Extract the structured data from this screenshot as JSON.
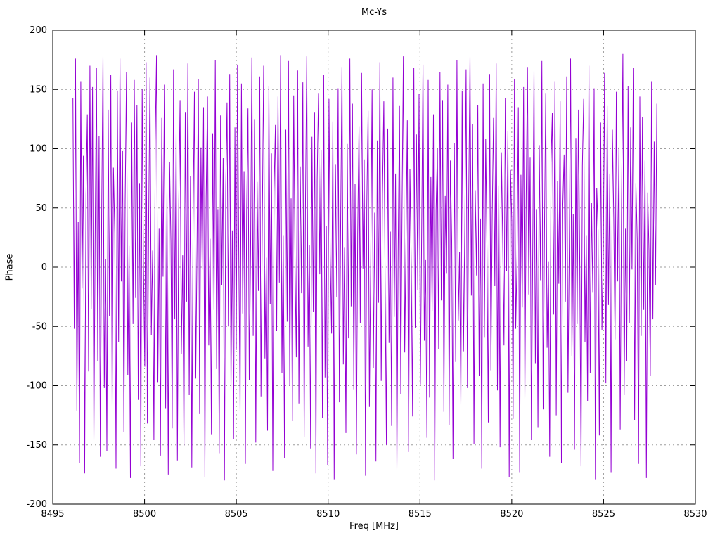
{
  "chart_data": {
    "type": "line",
    "title": "Mc-Ys",
    "xlabel": "Freq [MHz]",
    "ylabel": "Phase",
    "xlim": [
      8495,
      8530
    ],
    "ylim": [
      -200,
      200
    ],
    "x_ticks": [
      8495,
      8500,
      8505,
      8510,
      8515,
      8520,
      8525,
      8530
    ],
    "y_ticks": [
      -200,
      -150,
      -100,
      -50,
      0,
      50,
      100,
      150,
      200
    ],
    "grid": true,
    "legend": "none",
    "line_color": "#9400d3",
    "series_name": "Phase",
    "x_start": 8496.1,
    "x_end": 8527.9,
    "y_values": [
      143,
      -52,
      176,
      -121,
      38,
      -165,
      157,
      -18,
      94,
      -174,
      61,
      129,
      -88,
      170,
      -35,
      152,
      -147,
      23,
      168,
      -79,
      111,
      -160,
      45,
      178,
      -102,
      7,
      -155,
      133,
      -41,
      162,
      -117,
      84,
      29,
      -170,
      149,
      -63,
      176,
      -12,
      98,
      -139,
      55,
      165,
      -91,
      18,
      -178,
      122,
      -48,
      158,
      -26,
      137,
      -112,
      71,
      -168,
      150,
      4,
      -84,
      173,
      -132,
      42,
      160,
      -57,
      14,
      -146,
      107,
      179,
      -97,
      33,
      -159,
      126,
      -8,
      154,
      -119,
      66,
      -175,
      89,
      21,
      -136,
      167,
      -44,
      115,
      -163,
      52,
      141,
      -73,
      10,
      -151,
      131,
      -29,
      172,
      -108,
      77,
      -169,
      37,
      148,
      -94,
      16,
      159,
      -124,
      101,
      -2,
      135,
      -177,
      59,
      144,
      -66,
      24,
      -141,
      113,
      -36,
      175,
      -86,
      49,
      -157,
      128,
      -15,
      92,
      -180,
      68,
      139,
      -50,
      163,
      -105,
      31,
      -145,
      118,
      -70,
      171,
      5,
      -122,
      155,
      -39,
      81,
      -166,
      47,
      134,
      -95,
      12,
      177,
      -58,
      125,
      -148,
      72,
      -20,
      161,
      -109,
      40,
      170,
      -77,
      8,
      -138,
      153,
      -31,
      96,
      -172,
      64,
      120,
      -54,
      144,
      -13,
      179,
      -89,
      27,
      -161,
      116,
      -46,
      174,
      -100,
      58,
      -130,
      145,
      3,
      -76,
      166,
      -115,
      85,
      -22,
      156,
      -143,
      50,
      178,
      -67,
      19,
      -153,
      110,
      -38,
      131,
      -174,
      74,
      147,
      -6,
      99,
      -127,
      162,
      -93,
      35,
      -167,
      142,
      11,
      -56,
      123,
      -179,
      87,
      -25,
      151,
      -114,
      43,
      169,
      -82,
      17,
      -140,
      104,
      -60,
      176,
      -33,
      138,
      -103,
      70,
      -158,
      28,
      119,
      -47,
      164,
      -1,
      91,
      -176,
      53,
      132,
      -118,
      9,
      150,
      -85,
      46,
      -164,
      107,
      -30,
      173,
      -96,
      62,
      140,
      -10,
      -150,
      117,
      -64,
      30,
      -134,
      160,
      -42,
      79,
      -171,
      14,
      136,
      -107,
      55,
      178,
      -72,
      25,
      124,
      -156,
      83,
      2,
      -126,
      168,
      -51,
      112,
      -19,
      146,
      -99,
      36,
      171,
      -62,
      6,
      -144,
      158,
      -110,
      76,
      -37,
      129,
      -180,
      48,
      100,
      -69,
      165,
      -28,
      141,
      -122,
      60,
      -5,
      154,
      -133,
      90,
      22,
      -162,
      105,
      -80,
      175,
      -45,
      13,
      -116,
      149,
      -71,
      34,
      167,
      -102,
      57,
      178,
      -24,
      121,
      -149,
      65,
      -7,
      137,
      -92,
      41,
      -170,
      155,
      -59,
      108,
      15,
      -131,
      163,
      -87,
      44,
      126,
      -16,
      172,
      -104,
      69,
      -152,
      97,
      26,
      -66,
      143,
      -3,
      115,
      -177,
      82,
      39,
      -128,
      159,
      -52,
      9,
      135,
      -173,
      78,
      -34,
      152,
      -111,
      61,
      169,
      -23,
      93,
      -146,
      18,
      166,
      -81,
      49,
      -135,
      103,
      -11,
      174,
      -120,
      32,
      147,
      -68,
      5,
      -160,
      88,
      130,
      -40,
      157,
      -125,
      73,
      -14,
      140,
      -165,
      51,
      95,
      -29,
      161,
      -106,
      20,
      176,
      -75,
      45,
      -154,
      109,
      -48,
      133,
      1,
      -168,
      86,
      142,
      -63,
      27,
      -113,
      170,
      -89,
      54,
      -21,
      151,
      -179,
      67,
      31,
      -142,
      122,
      -53,
      8,
      164,
      -98,
      136,
      -32,
      79,
      -173,
      116,
      42,
      -61,
      148,
      -12,
      101,
      -137,
      56,
      180,
      -108,
      33,
      -79,
      153,
      -47,
      118,
      -2,
      168,
      -129,
      71,
      23,
      -166,
      144,
      -58,
      127,
      -36,
      90,
      -178,
      63,
      14,
      -92,
      157,
      -44,
      106,
      -15,
      138
    ]
  }
}
